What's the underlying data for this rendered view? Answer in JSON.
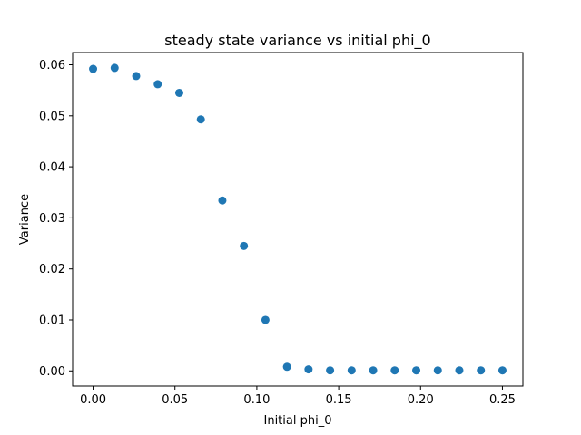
{
  "chart_data": {
    "type": "scatter",
    "title": "steady state variance vs initial phi_0",
    "xlabel": "Initial phi_0",
    "ylabel": "Variance",
    "xlim": [
      -0.0125,
      0.2625
    ],
    "ylim": [
      -0.00297,
      0.0624
    ],
    "xticks": [
      0.0,
      0.05,
      0.1,
      0.15,
      0.2,
      0.25
    ],
    "xtick_labels": [
      "0.00",
      "0.05",
      "0.10",
      "0.15",
      "0.20",
      "0.25"
    ],
    "yticks": [
      0.0,
      0.01,
      0.02,
      0.03,
      0.04,
      0.05,
      0.06
    ],
    "ytick_labels": [
      "0.00",
      "0.01",
      "0.02",
      "0.03",
      "0.04",
      "0.05",
      "0.06"
    ],
    "grid": false,
    "marker_color": "#1f77b4",
    "series": [
      {
        "x": [
          0.0,
          0.01316,
          0.02632,
          0.03947,
          0.05263,
          0.06579,
          0.07895,
          0.09211,
          0.10526,
          0.11842,
          0.13158,
          0.14474,
          0.15789,
          0.17105,
          0.18421,
          0.19737,
          0.21053,
          0.22368,
          0.23684,
          0.25
        ],
        "y": [
          0.0592,
          0.0594,
          0.0578,
          0.0562,
          0.0545,
          0.0493,
          0.0334,
          0.0245,
          0.01,
          0.0008,
          0.0003,
          0.0001,
          0.0001,
          0.0001,
          0.0001,
          0.0001,
          0.0001,
          0.0001,
          0.0001,
          0.0001
        ]
      }
    ]
  }
}
